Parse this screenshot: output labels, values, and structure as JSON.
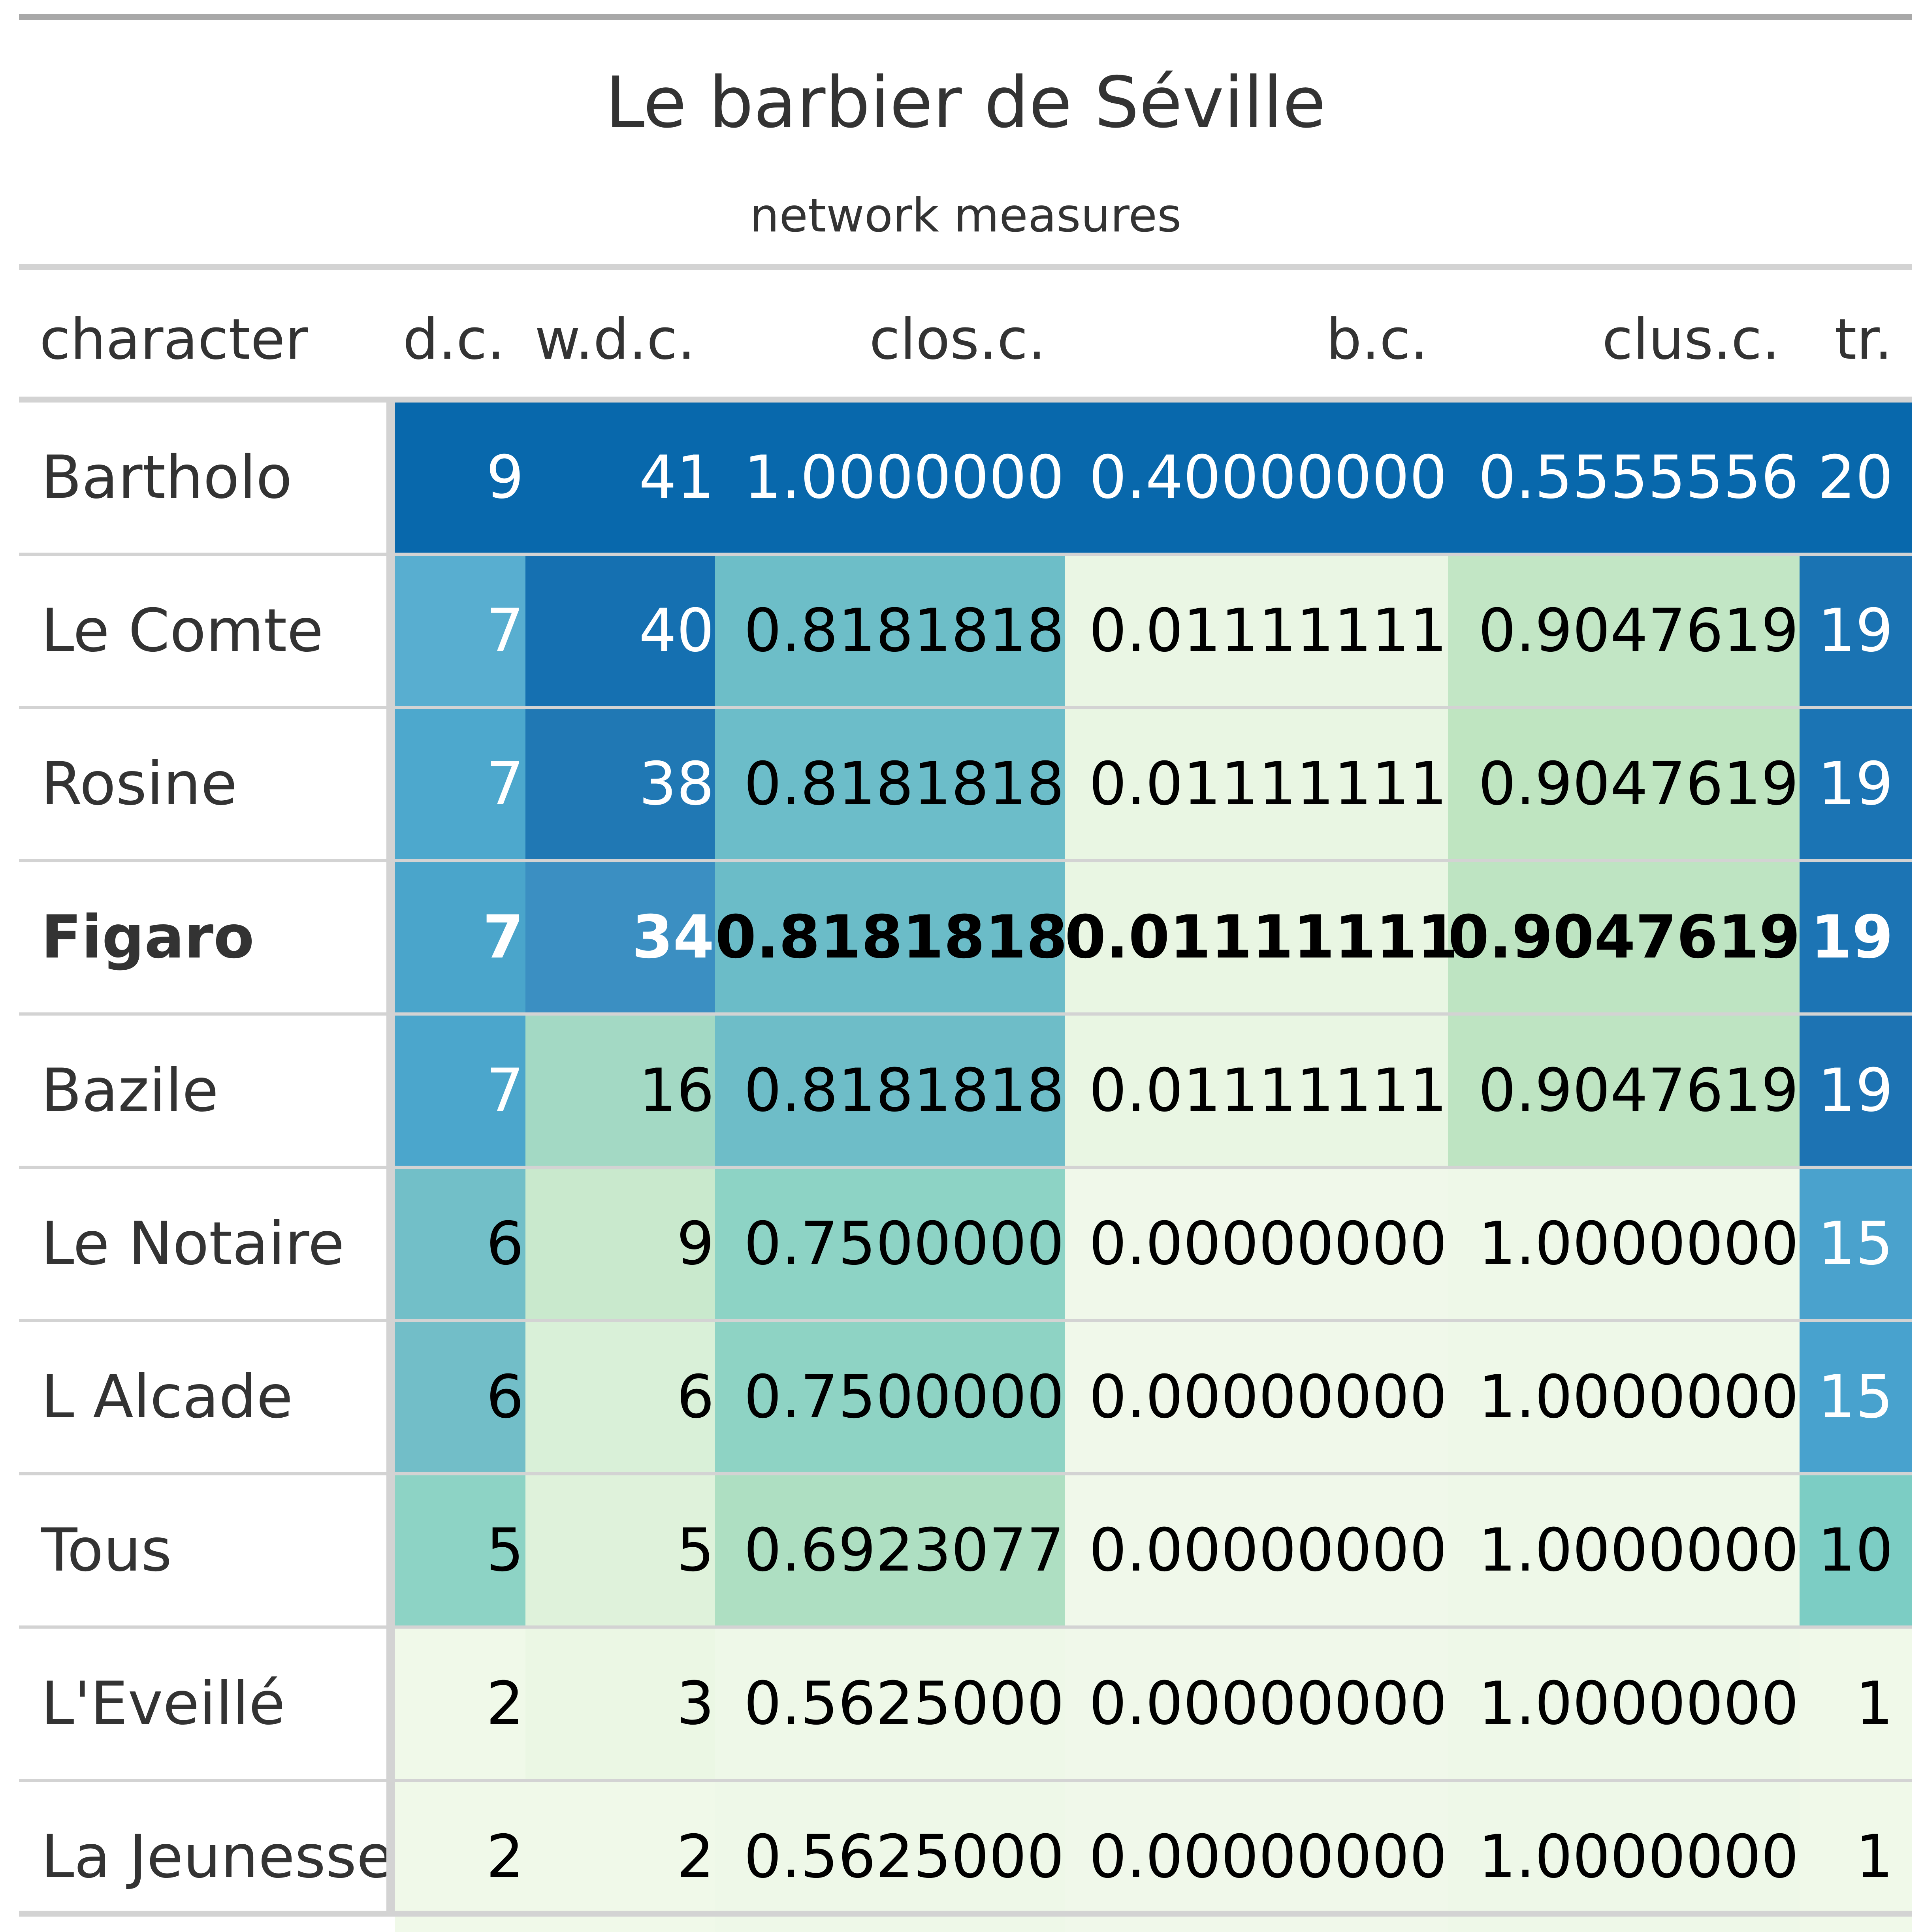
{
  "table": {
    "title": "Le barbier de Séville",
    "subtitle": "network measures",
    "columns": [
      "character",
      "d.c.",
      "w.d.c.",
      "clos.c.",
      "b.c.",
      "clus.c.",
      "tr."
    ],
    "rows": [
      {
        "character": "Bartholo",
        "d.c.": "9",
        "w.d.c.": "41",
        "clos.c.": "1.0000000",
        "b.c.": "0.40000000",
        "clus.c.": "0.5555556",
        "tr.": "20",
        "bold": false
      },
      {
        "character": "Le Comte",
        "d.c.": "7",
        "w.d.c.": "40",
        "clos.c.": "0.8181818",
        "b.c.": "0.01111111",
        "clus.c.": "0.9047619",
        "tr.": "19",
        "bold": false
      },
      {
        "character": "Rosine",
        "d.c.": "7",
        "w.d.c.": "38",
        "clos.c.": "0.8181818",
        "b.c.": "0.01111111",
        "clus.c.": "0.9047619",
        "tr.": "19",
        "bold": false
      },
      {
        "character": "Figaro",
        "d.c.": "7",
        "w.d.c.": "34",
        "clos.c.": "0.8181818",
        "b.c.": "0.01111111",
        "clus.c.": "0.9047619",
        "tr.": "19",
        "bold": true
      },
      {
        "character": "Bazile",
        "d.c.": "7",
        "w.d.c.": "16",
        "clos.c.": "0.8181818",
        "b.c.": "0.01111111",
        "clus.c.": "0.9047619",
        "tr.": "19",
        "bold": false
      },
      {
        "character": "Le Notaire",
        "d.c.": "6",
        "w.d.c.": "9",
        "clos.c.": "0.7500000",
        "b.c.": "0.00000000",
        "clus.c.": "1.0000000",
        "tr.": "15",
        "bold": false
      },
      {
        "character": "L Alcade",
        "d.c.": "6",
        "w.d.c.": "6",
        "clos.c.": "0.7500000",
        "b.c.": "0.00000000",
        "clus.c.": "1.0000000",
        "tr.": "15",
        "bold": false
      },
      {
        "character": "Tous",
        "d.c.": "5",
        "w.d.c.": "5",
        "clos.c.": "0.6923077",
        "b.c.": "0.00000000",
        "clus.c.": "1.0000000",
        "tr.": "10",
        "bold": false
      },
      {
        "character": "L'Eveillé",
        "d.c.": "2",
        "w.d.c.": "3",
        "clos.c.": "0.5625000",
        "b.c.": "0.00000000",
        "clus.c.": "1.0000000",
        "tr.": "1",
        "bold": false
      },
      {
        "character": "La Jeunesse",
        "d.c.": "2",
        "w.d.c.": "2",
        "clos.c.": "0.5625000",
        "b.c.": "0.00000000",
        "clus.c.": "1.0000000",
        "tr.": "1",
        "bold": false
      }
    ],
    "cell_colors": [
      [
        "#0868ac",
        "#0868ac",
        "#0868ac",
        "#0868ac",
        "#0868ac",
        "#0868ac"
      ],
      [
        "#58aed0",
        "#1570b1",
        "#6dbec8",
        "#eaf6e4",
        "#c2e6c5",
        "#1a73b3"
      ],
      [
        "#4da8cd",
        "#2078b4",
        "#6cbdc9",
        "#e9f6e3",
        "#bfe5c1",
        "#1b74b4"
      ],
      [
        "#4aa5cb",
        "#3b8fc2",
        "#6bbcc8",
        "#e9f6e3",
        "#bee4c2",
        "#1c74b4"
      ],
      [
        "#4ba6cc",
        "#a3d9c4",
        "#6ebdc8",
        "#e9f6e3",
        "#bee4c2",
        "#1d73b3"
      ],
      [
        "#72bfc8",
        "#c9e9cd",
        "#8dd3c5",
        "#f0f8ea",
        "#eef8e8",
        "#4aa2cd"
      ],
      [
        "#72bec8",
        "#d9f0d8",
        "#8ed3c4",
        "#f0f8ea",
        "#eef8e8",
        "#48a2ce"
      ],
      [
        "#8dd3c5",
        "#dff2db",
        "#aedfc2",
        "#f0f8ea",
        "#eef8e8",
        "#7ccdc4"
      ],
      [
        "#f0f9e9",
        "#ebf7e4",
        "#eef8e8",
        "#f0f8ea",
        "#eef8e8",
        "#f0f9e9"
      ],
      [
        "#f0f9e9",
        "#f0f9e9",
        "#eef8e8",
        "#f0f8ea",
        "#eef8e8",
        "#f0f9e9"
      ]
    ],
    "cell_text_light": [
      [
        true,
        true,
        true,
        true,
        true,
        true
      ],
      [
        true,
        true,
        false,
        false,
        false,
        true
      ],
      [
        true,
        true,
        false,
        false,
        false,
        true
      ],
      [
        true,
        true,
        false,
        false,
        false,
        true
      ],
      [
        true,
        false,
        false,
        false,
        false,
        true
      ],
      [
        false,
        false,
        false,
        false,
        false,
        true
      ],
      [
        false,
        false,
        false,
        false,
        false,
        true
      ],
      [
        false,
        false,
        false,
        false,
        false,
        false
      ],
      [
        false,
        false,
        false,
        false,
        false,
        false
      ],
      [
        false,
        false,
        false,
        false,
        false,
        false
      ]
    ]
  }
}
